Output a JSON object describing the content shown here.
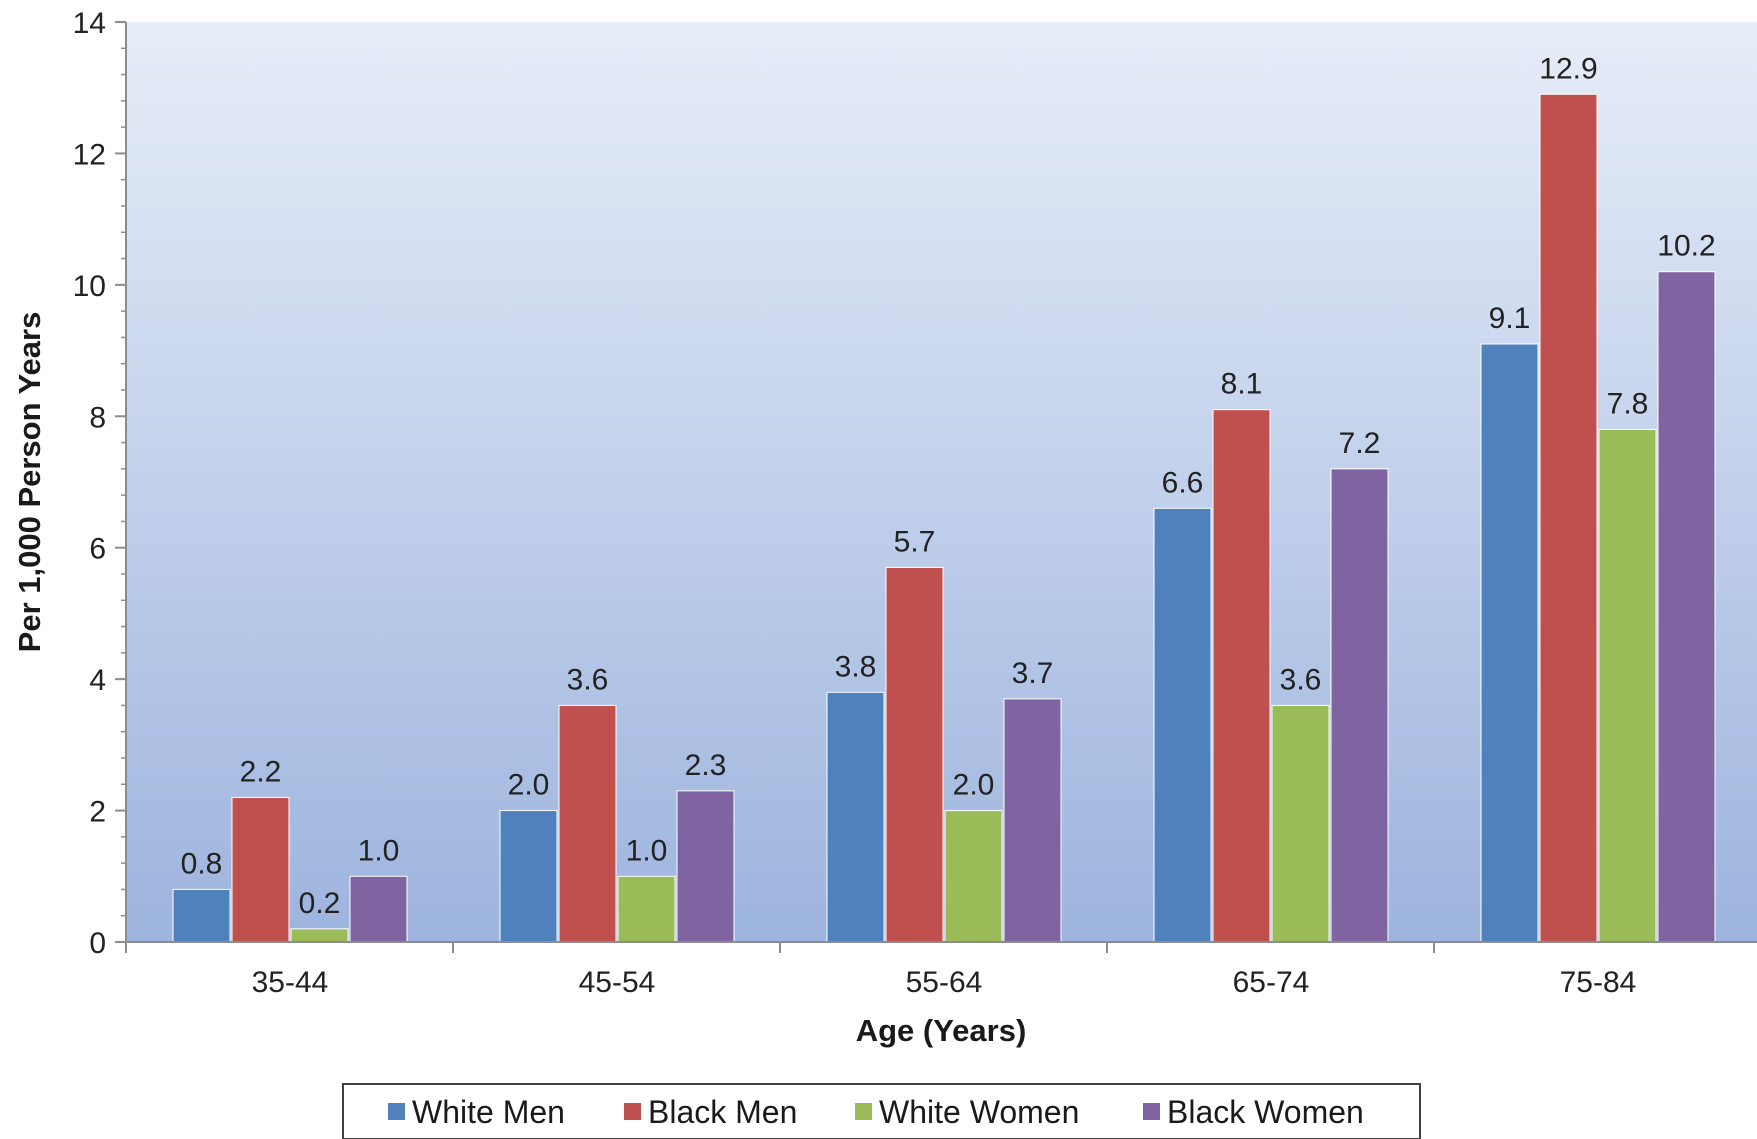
{
  "chart_data": {
    "type": "bar",
    "title": "",
    "xlabel": "Age (Years)",
    "ylabel": "Per 1,000 Person Years",
    "categories": [
      "35-44",
      "45-54",
      "55-64",
      "65-74",
      "75-84"
    ],
    "ylim": [
      0,
      14
    ],
    "yticks": [
      0,
      2,
      4,
      6,
      8,
      10,
      12,
      14
    ],
    "grid": false,
    "legend_position": "bottom",
    "series": [
      {
        "name": "White Men",
        "color": "#4f81bd",
        "values": [
          0.8,
          2.0,
          3.8,
          6.6,
          9.1
        ],
        "labels": [
          "0.8",
          "2.0",
          "3.8",
          "6.6",
          "9.1"
        ]
      },
      {
        "name": "Black Men",
        "color": "#c0504d",
        "values": [
          2.2,
          3.6,
          5.7,
          8.1,
          12.9
        ],
        "labels": [
          "2.2",
          "3.6",
          "5.7",
          "8.1",
          "12.9"
        ]
      },
      {
        "name": "White Women",
        "color": "#9bbb59",
        "values": [
          0.2,
          1.0,
          2.0,
          3.6,
          7.8
        ],
        "labels": [
          "0.2",
          "1.0",
          "2.0",
          "3.6",
          "7.8"
        ]
      },
      {
        "name": "Black Women",
        "color": "#8064a2",
        "values": [
          1.0,
          2.3,
          3.7,
          7.2,
          10.2
        ],
        "labels": [
          "1.0",
          "2.3",
          "3.7",
          "7.2",
          "10.2"
        ]
      }
    ]
  }
}
